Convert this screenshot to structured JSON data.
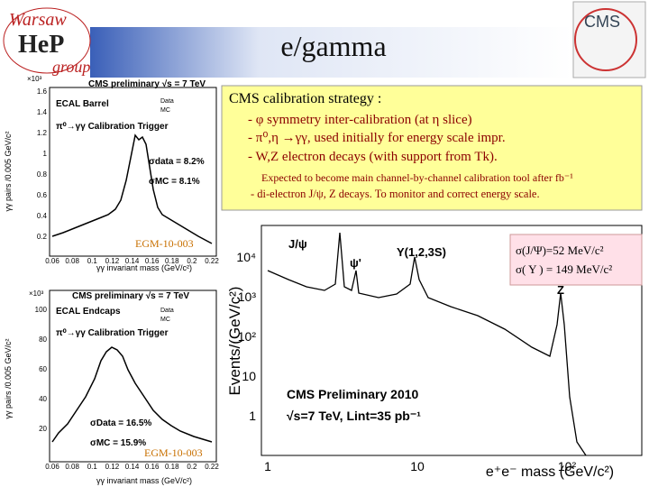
{
  "header": {
    "logo": {
      "top": "Warsaw",
      "letters": "HeP",
      "bottom": "group"
    },
    "title": "e/gamma",
    "cms_logo": "CMS"
  },
  "strategy_box": {
    "heading": "CMS calibration strategy :",
    "items": [
      "- φ symmetry inter-calibration (at η slice)",
      "- π⁰,η →γγ, used initially for energy scale impr.",
      "- W,Z electron decays (with support from Tk)."
    ],
    "notes": [
      "Expected to become main channel-by-channel calibration tool after fb⁻¹",
      "- di-electron J/ψ, Z decays. To monitor and correct energy scale."
    ]
  },
  "barrel_plot": {
    "title": "CMS preliminary √s = 7 TeV",
    "region": "ECAL Barrel",
    "trigger": "π⁰→γγ Calibration Trigger",
    "legend": [
      "Data",
      "MC"
    ],
    "sigma_data": "σdata = 8.2%",
    "sigma_mc": "σMC = 8.1%",
    "y_label": "γγ pairs /0.005 GeV/c²",
    "x_label": "γγ invariant mass (GeV/c²)",
    "multiplier": "×10³",
    "xticks": [
      "0.06",
      "0.08",
      "0.1",
      "0.12",
      "0.14",
      "0.16",
      "0.18",
      "0.2",
      "0.22"
    ],
    "yticks": [
      "1.6",
      "1.4",
      "1.2",
      "1",
      "0.8",
      "0.6",
      "0.4",
      "0.2"
    ],
    "ref": "EGM-10-003"
  },
  "endcap_plot": {
    "title": "CMS preliminary √s = 7 TeV",
    "region": "ECAL Endcaps",
    "trigger": "π⁰→γγ Calibration Trigger",
    "legend": [
      "Data",
      "MC"
    ],
    "sigma_data": "σData = 16.5%",
    "sigma_mc": "σMC = 15.9%",
    "y_label": "γγ pairs /0.005 GeV/c²",
    "x_label": "γγ invariant mass (GeV/c²)",
    "multiplier": "×10³",
    "xticks": [
      "0.06",
      "0.08",
      "0.1",
      "0.12",
      "0.14",
      "0.16",
      "0.18",
      "0.2",
      "0.22"
    ],
    "yticks": [
      "100",
      "80",
      "60",
      "40",
      "20"
    ],
    "ref": "EGM-10-003"
  },
  "mass_plot": {
    "y_label": "Events/(GeV/c²)",
    "x_label": "e⁺e⁻ mass (GeV/c²)",
    "yticks": [
      "10⁴",
      "10³",
      "10²",
      "10",
      "1"
    ],
    "xticks": [
      "1",
      "10",
      "10²"
    ],
    "peaks": [
      "J/ψ",
      "ψ'",
      "Υ(1,2,3S)",
      "Z"
    ],
    "caption": [
      "CMS Preliminary 2010",
      "√s=7 TeV, Lint=35 pb⁻¹"
    ]
  },
  "resolution_box": {
    "lines": [
      "σ(J/Ψ)=52 MeV/c²",
      "σ( Υ ) = 149 MeV/c²"
    ]
  }
}
